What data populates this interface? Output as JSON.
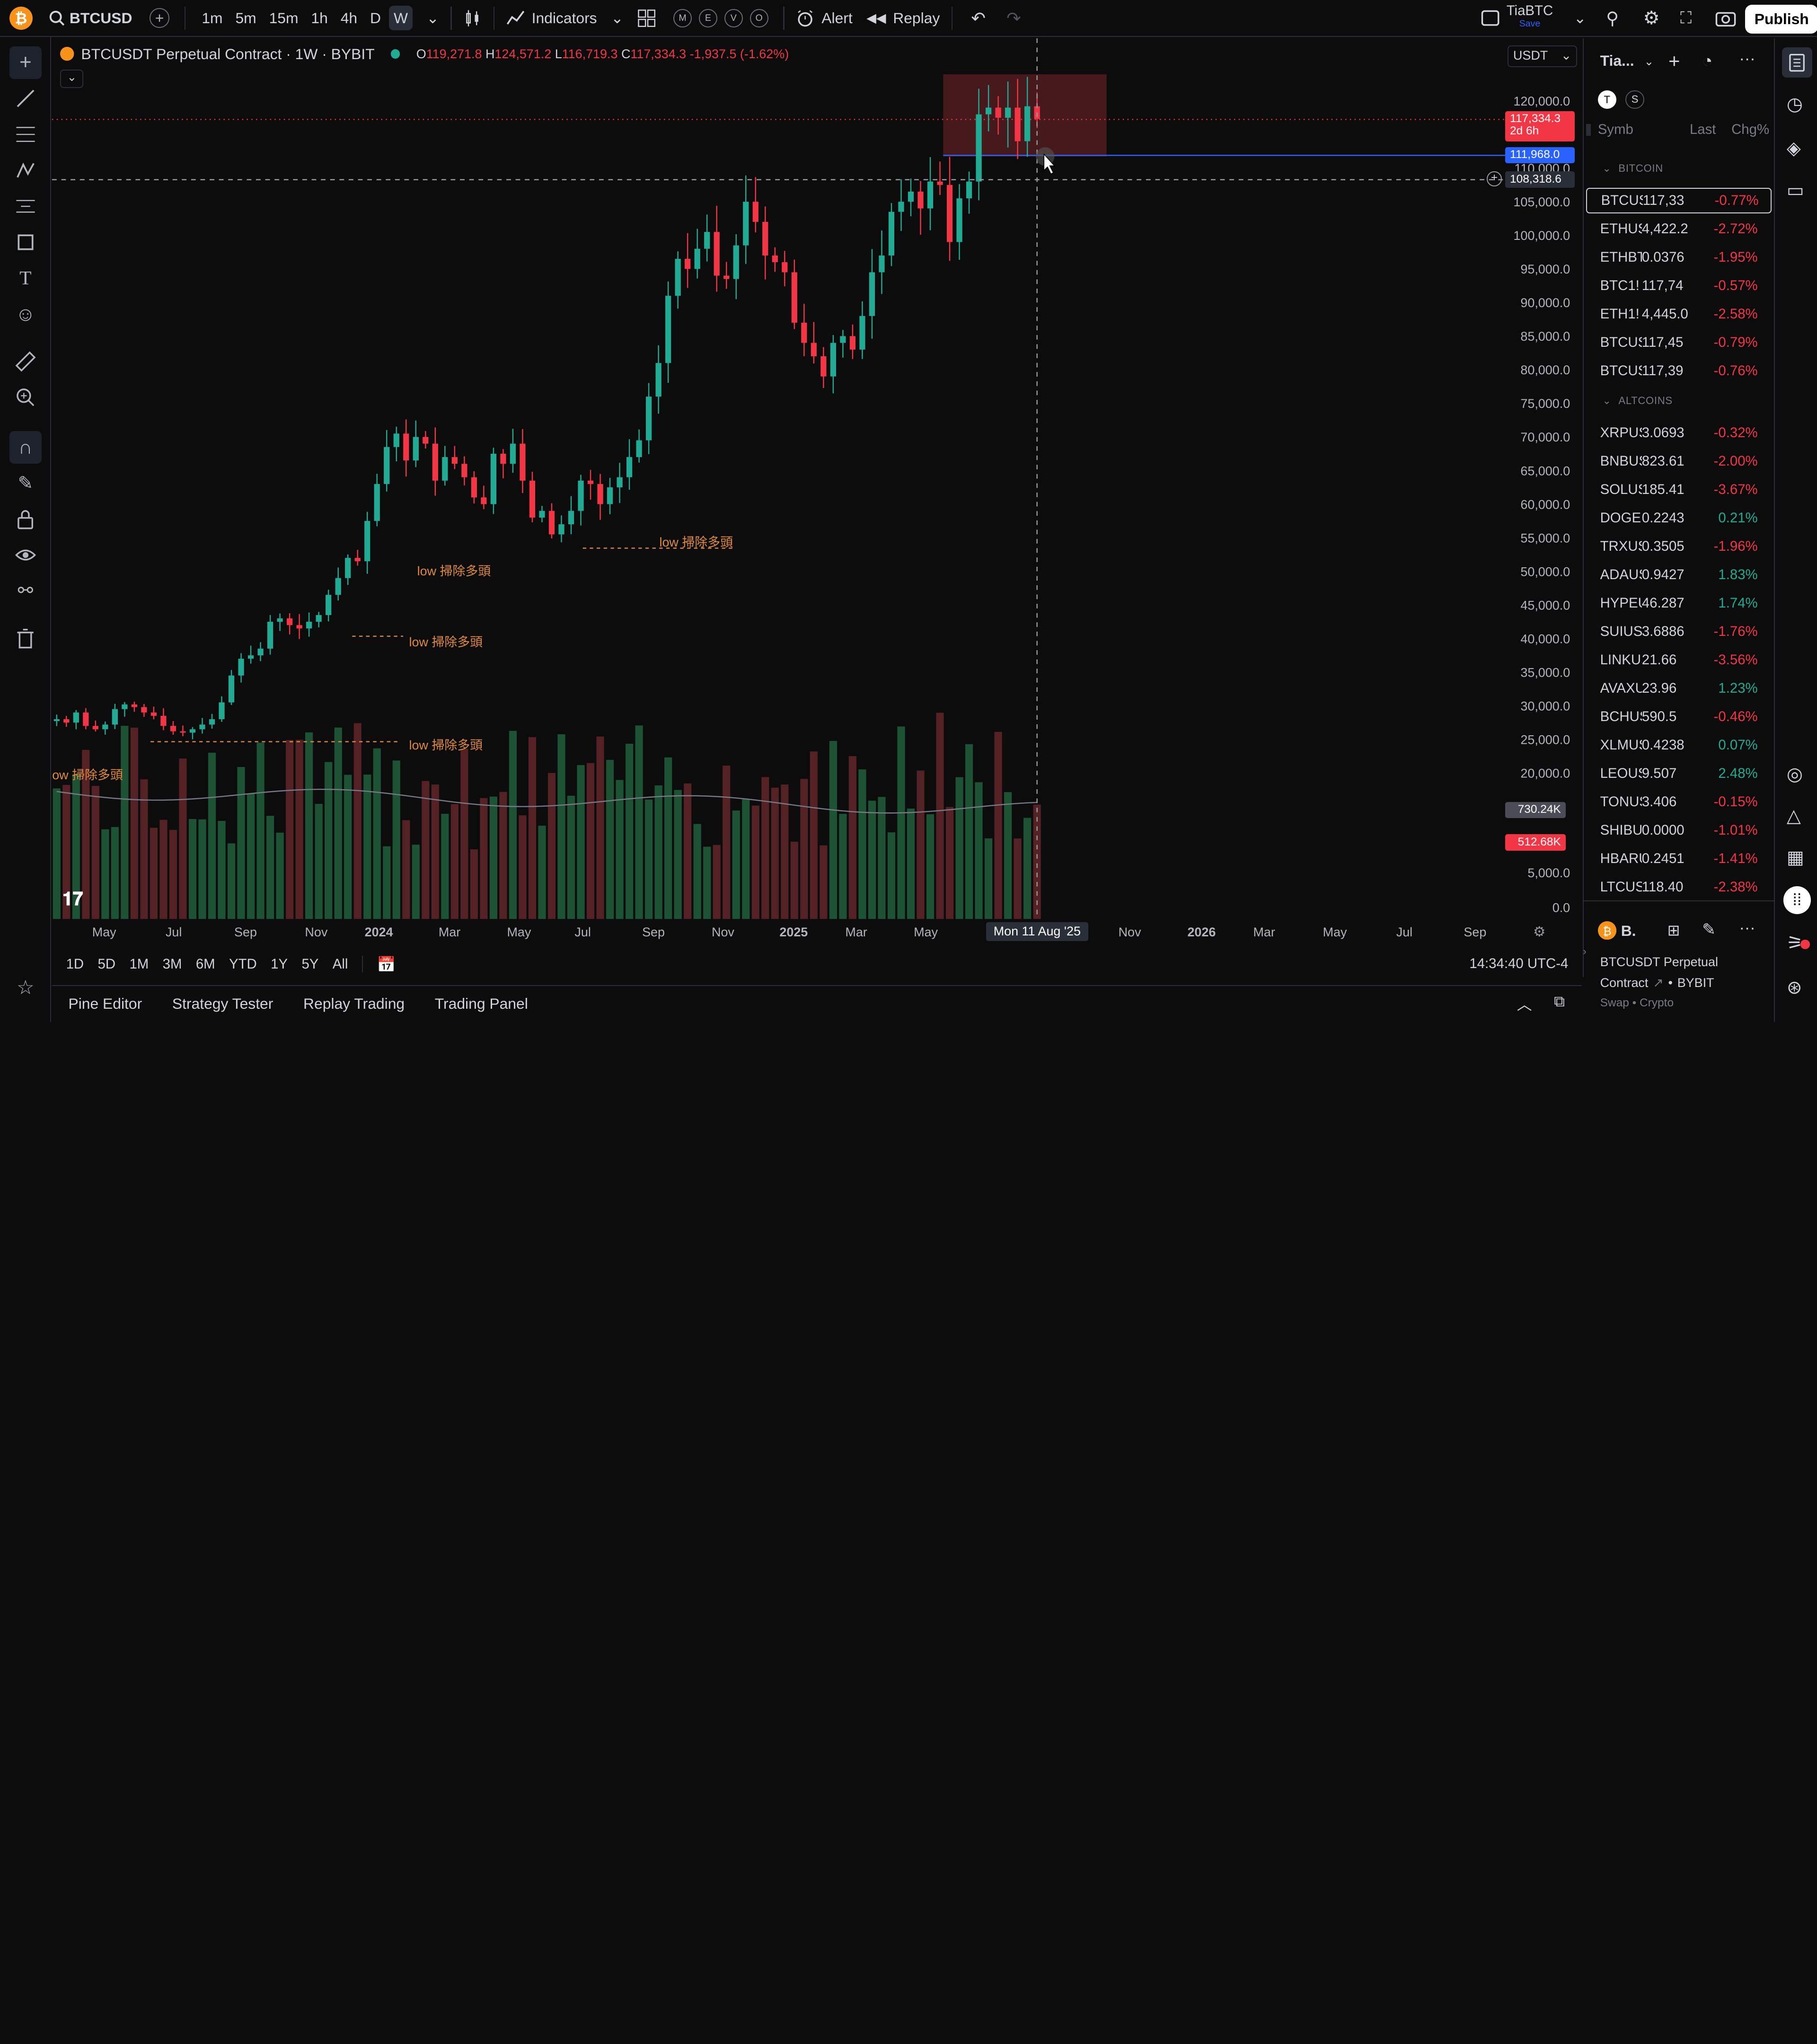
{
  "topbar": {
    "symbol": "BTCUSD",
    "timeframes": [
      "1m",
      "5m",
      "15m",
      "1h",
      "4h",
      "D",
      "W"
    ],
    "active_timeframe": "W",
    "indicators_label": "Indicators",
    "circle_buttons": [
      "M",
      "E",
      "V",
      "O"
    ],
    "alert_label": "Alert",
    "replay_label": "Replay",
    "layout_name": "TiaBTC",
    "layout_status": "Save",
    "publish_label": "Publish"
  },
  "legend": {
    "title": "BTCUSDT Perpetual Contract · 1W · BYBIT",
    "o_label": "O",
    "o": "119,271.8",
    "h_label": "H",
    "h": "124,571.2",
    "l_label": "L",
    "l": "116,719.3",
    "c_label": "C",
    "c": "117,334.3",
    "change": "-1,937.5 (-1.62%)"
  },
  "currency": "USDT",
  "price_labels": {
    "current": "117,334.3",
    "countdown": "2d 6h",
    "line": "111,968.0",
    "crosshair": "108,318.6",
    "vol_ma": "730.24K",
    "vol": "512.68K"
  },
  "annotations": [
    "low 掃除多頭",
    "low 掃除多頭",
    "low 掃除多頭",
    "ow 掃除多頭",
    "low 掃除多頭"
  ],
  "crosshair_date": "Mon 11 Aug '25",
  "range_buttons": [
    "1D",
    "5D",
    "1M",
    "3M",
    "6M",
    "YTD",
    "1Y",
    "5Y",
    "All"
  ],
  "clock": "14:34:40 UTC-4",
  "bottom_tabs": [
    "Pine Editor",
    "Strategy Tester",
    "Replay Trading",
    "Trading Panel"
  ],
  "chart_data": {
    "type": "candlestick",
    "y_ticks": [
      "120,000.0",
      "115,000.0",
      "110,000.0",
      "105,000.0",
      "100,000.0",
      "95,000.0",
      "90,000.0",
      "85,000.0",
      "80,000.0",
      "75,000.0",
      "70,000.0",
      "65,000.0",
      "60,000.0",
      "55,000.0",
      "50,000.0",
      "45,000.0",
      "40,000.0",
      "35,000.0",
      "30,000.0",
      "25,000.0",
      "20,000.0",
      "5,000.0",
      "0.0"
    ],
    "x_ticks": [
      "May",
      "Jul",
      "Sep",
      "Nov",
      "2024",
      "Mar",
      "May",
      "Jul",
      "Sep",
      "Nov",
      "2025",
      "Mar",
      "May",
      "Nov",
      "2026",
      "Mar",
      "May",
      "Jul",
      "Sep"
    ],
    "ylim": [
      0,
      124000
    ],
    "price_path": [
      28000,
      27500,
      29000,
      27000,
      26500,
      27200,
      29500,
      30200,
      29800,
      29000,
      28500,
      27000,
      26200,
      26000,
      26500,
      27200,
      28000,
      30500,
      34500,
      37000,
      37500,
      38500,
      42500,
      43000,
      42000,
      41500,
      42500,
      43500,
      46500,
      49000,
      52000,
      51500,
      57500,
      63000,
      68500,
      70500,
      66500,
      70000,
      69000,
      63500,
      67000,
      66000,
      64000,
      61000,
      60000,
      67500,
      66000,
      69000,
      63500,
      58000,
      59000,
      55500,
      57000,
      59000,
      63500,
      63000,
      60000,
      62500,
      64000,
      67000,
      69500,
      76000,
      81000,
      91000,
      96500,
      95000,
      98000,
      100500,
      94000,
      93500,
      98500,
      105000,
      102000,
      97000,
      96000,
      94500,
      87000,
      84000,
      82000,
      79000,
      84000,
      85000,
      83000,
      88000,
      94500,
      97000,
      103500,
      105000,
      106500,
      104000,
      108000,
      107500,
      99000,
      105500,
      108000,
      118000,
      119000,
      117500,
      119000,
      114000,
      119200,
      117300
    ],
    "watchlist_title": "Tia...",
    "watchlist_cols": [
      "Symb",
      "Last",
      "Chg%"
    ],
    "groups": [
      {
        "name": "BITCOIN",
        "items": [
          {
            "s": "BTCUSD",
            "l": "117,33",
            "c": "-0.77%"
          },
          {
            "s": "ETHUSD",
            "l": "4,422.2",
            "c": "-2.72%"
          },
          {
            "s": "ETHBTC",
            "l": "0.0376",
            "c": "-1.95%"
          },
          {
            "s": "BTC1!",
            "l": "117,74",
            "c": "-0.57%"
          },
          {
            "s": "ETH1!",
            "l": "4,445.0",
            "c": "-2.58%"
          },
          {
            "s": "BTCUSD",
            "l": "117,45",
            "c": "-0.79%"
          },
          {
            "s": "BTCUSD",
            "l": "117,39",
            "c": "-0.76%"
          }
        ]
      },
      {
        "name": "ALTCOINS",
        "items": [
          {
            "s": "XRPUSD",
            "l": "3.0693",
            "c": "-0.32%"
          },
          {
            "s": "BNBUSD",
            "l": "823.61",
            "c": "-2.00%"
          },
          {
            "s": "SOLUSD",
            "l": "185.41",
            "c": "-3.67%"
          },
          {
            "s": "DOGEUSD",
            "l": "0.2243",
            "c": "0.21%"
          },
          {
            "s": "TRXUSD",
            "l": "0.3505",
            "c": "-1.96%"
          },
          {
            "s": "ADAUSD",
            "l": "0.9427",
            "c": "1.83%"
          },
          {
            "s": "HYPEUSD",
            "l": "46.287",
            "c": "1.74%"
          },
          {
            "s": "SUIUSD",
            "l": "3.6886",
            "c": "-1.76%"
          },
          {
            "s": "LINKUSD",
            "l": "21.66",
            "c": "-3.56%"
          },
          {
            "s": "AVAXUSD",
            "l": "23.96",
            "c": "1.23%"
          },
          {
            "s": "BCHUSD",
            "l": "590.5",
            "c": "-0.46%"
          },
          {
            "s": "XLMUSD",
            "l": "0.4238",
            "c": "0.07%"
          },
          {
            "s": "LEOUSD",
            "l": "9.507",
            "c": "2.48%"
          },
          {
            "s": "TONUSD",
            "l": "3.406",
            "c": "-0.15%"
          },
          {
            "s": "SHIBUSD",
            "l": "0.0000",
            "c": "-1.01%"
          },
          {
            "s": "HBARUSD",
            "l": "0.2451",
            "c": "-1.41%"
          },
          {
            "s": "LTCUSD",
            "l": "118.40",
            "c": "-2.38%"
          }
        ]
      }
    ]
  },
  "details": {
    "symbol_short": "B.",
    "line1": "BTCUSDT Perpetual",
    "line2": "Contract",
    "exchange": "BYBIT",
    "type": "Swap • Crypto"
  }
}
